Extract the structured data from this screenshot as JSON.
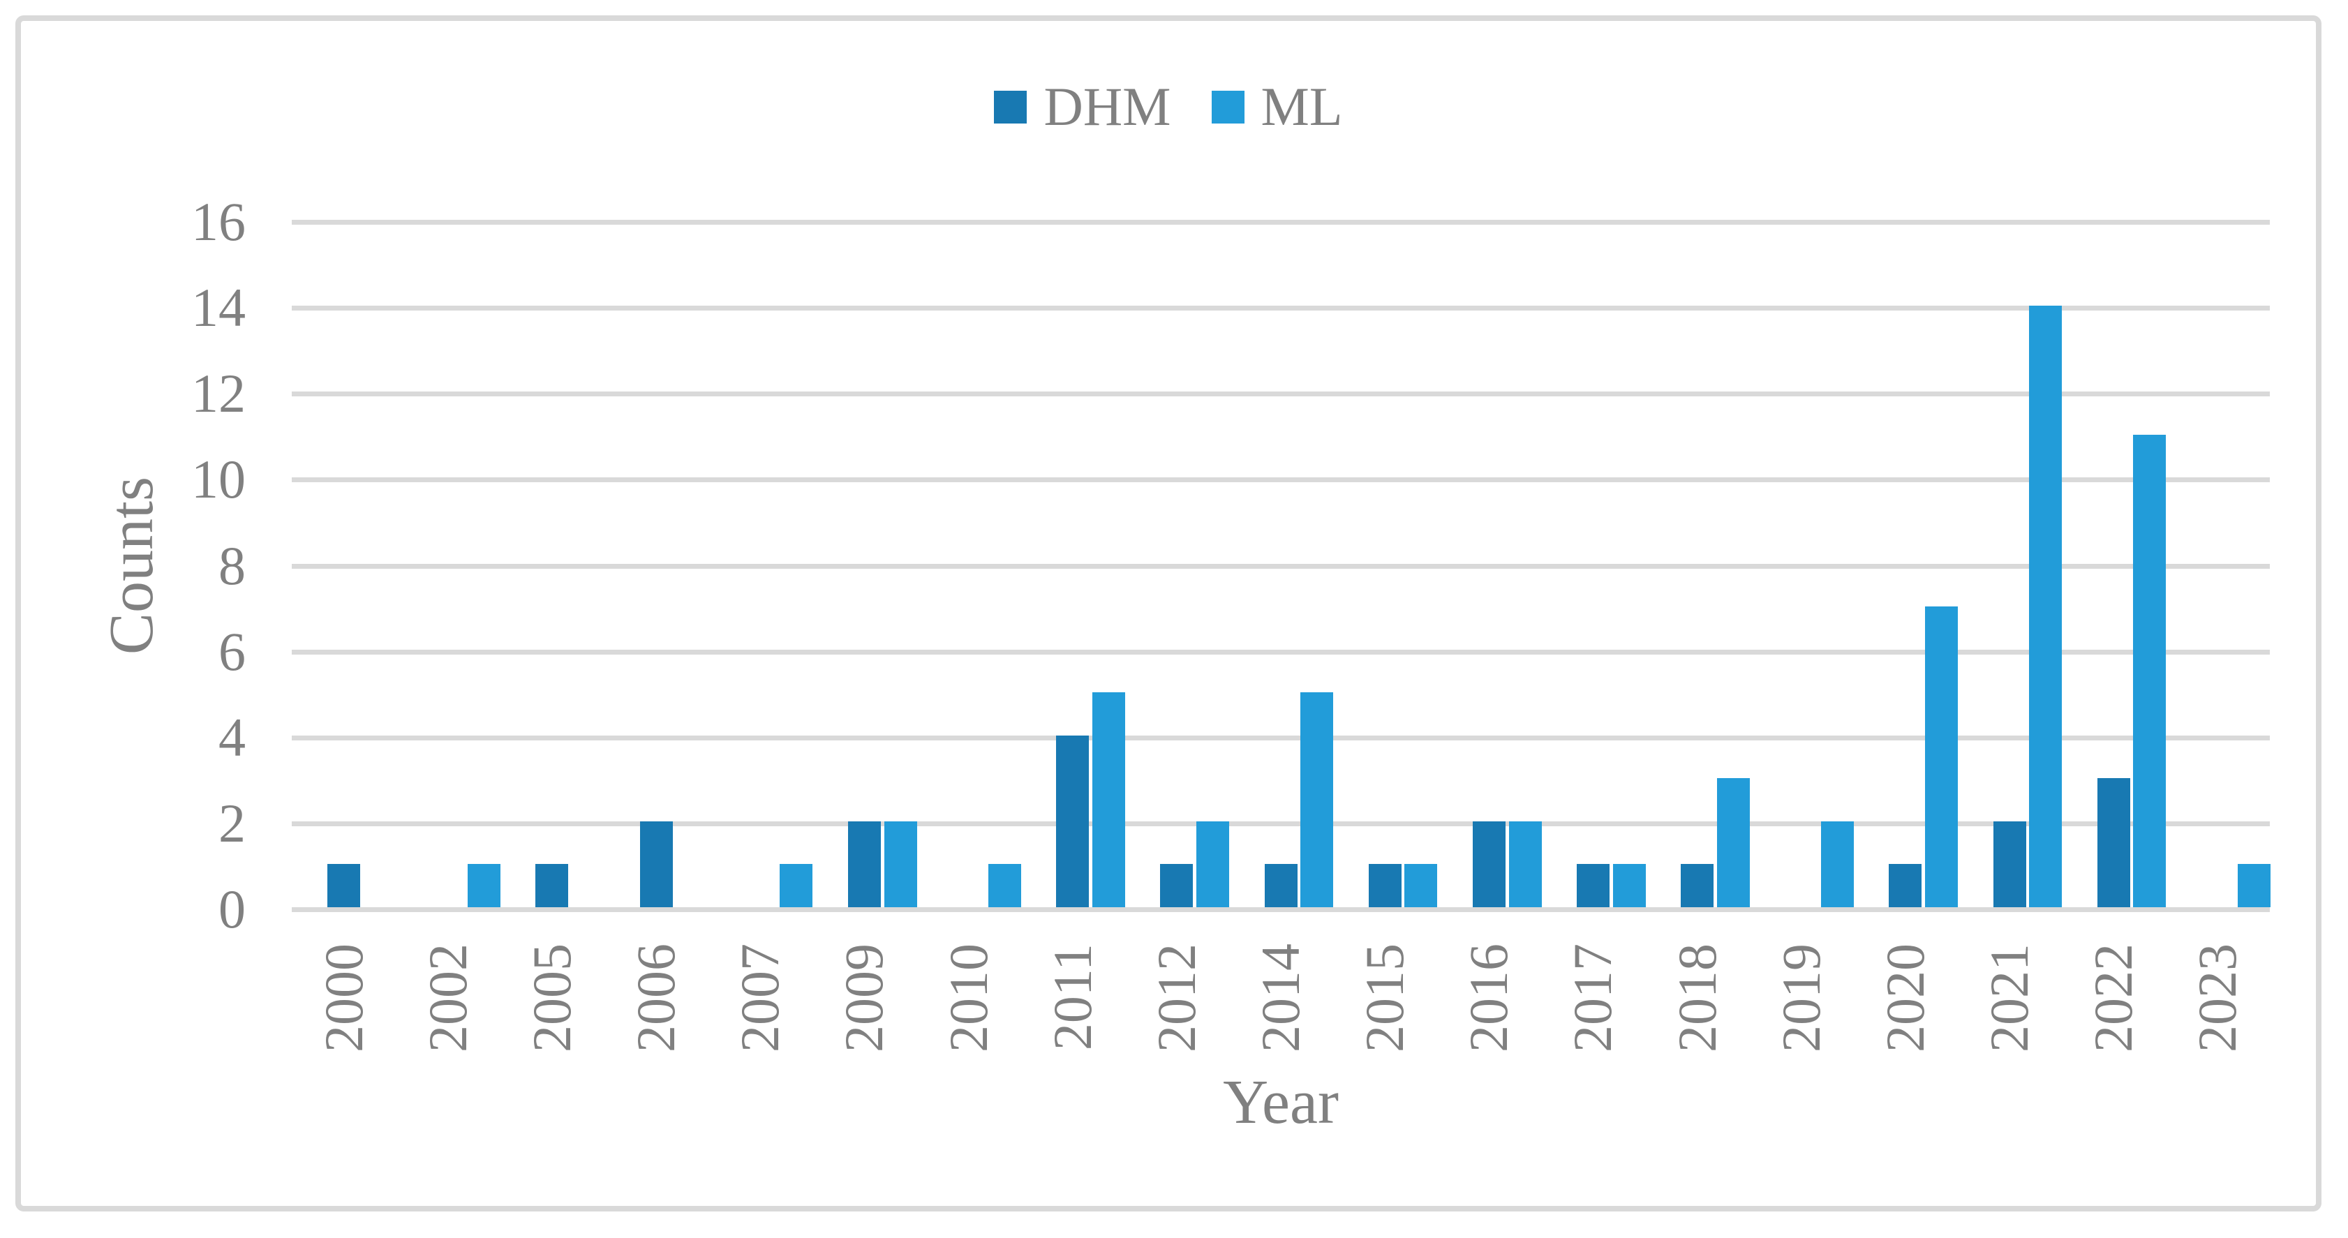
{
  "chart_data": {
    "type": "bar",
    "title": "",
    "categories": [
      "2000",
      "2002",
      "2005",
      "2006",
      "2007",
      "2009",
      "2010",
      "2011",
      "2012",
      "2014",
      "2015",
      "2016",
      "2017",
      "2018",
      "2019",
      "2020",
      "2021",
      "2022",
      "2023"
    ],
    "series": [
      {
        "name": "DHM",
        "color": "#1879b2",
        "values": [
          1,
          0,
          1,
          2,
          0,
          2,
          0,
          4,
          1,
          1,
          1,
          2,
          1,
          1,
          0,
          1,
          2,
          3,
          0
        ]
      },
      {
        "name": "ML",
        "color": "#229cd9",
        "values": [
          0,
          1,
          0,
          0,
          1,
          2,
          1,
          5,
          2,
          5,
          1,
          2,
          1,
          3,
          2,
          7,
          14,
          11,
          1
        ]
      }
    ],
    "xlabel": "Year",
    "ylabel": "Counts",
    "ylim": [
      0,
      16
    ],
    "yticks": [
      0,
      2,
      4,
      6,
      8,
      10,
      12,
      14,
      16
    ],
    "grid": true,
    "legend_position": "top-center"
  },
  "style_colors": {
    "gridline": "#d9d9d9",
    "chart_border": "#d9d9d9",
    "label_text": "#808080",
    "background": "#ffffff"
  }
}
